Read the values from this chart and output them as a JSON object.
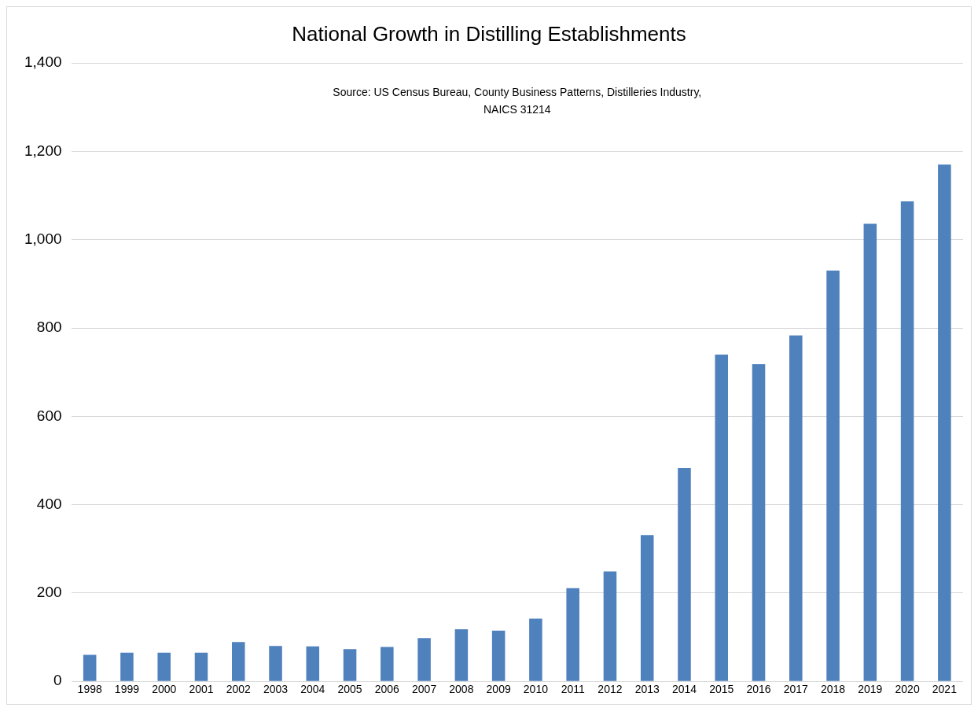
{
  "chart_data": {
    "type": "bar",
    "title": "National Growth in Distilling Establishments",
    "annotations": [
      "Source: US Census Bureau, County Business Patterns, Distilleries Industry,\nNAICS 31214"
    ],
    "categories": [
      "1998",
      "1999",
      "2000",
      "2001",
      "2002",
      "2003",
      "2004",
      "2005",
      "2006",
      "2007",
      "2008",
      "2009",
      "2010",
      "2011",
      "2012",
      "2013",
      "2014",
      "2015",
      "2016",
      "2017",
      "2018",
      "2019",
      "2020",
      "2021"
    ],
    "values": [
      60,
      65,
      65,
      65,
      89,
      80,
      79,
      73,
      78,
      98,
      118,
      115,
      142,
      211,
      249,
      331,
      483,
      740,
      718,
      783,
      930,
      1036,
      1087,
      1170
    ],
    "color": "#4f81bd",
    "ylim": [
      0,
      1400
    ],
    "yticks": [
      {
        "value": 0,
        "label": "0"
      },
      {
        "value": 200,
        "label": "200"
      },
      {
        "value": 400,
        "label": "400"
      },
      {
        "value": 600,
        "label": "600"
      },
      {
        "value": 800,
        "label": "800"
      },
      {
        "value": 1000,
        "label": "1,000"
      },
      {
        "value": 1200,
        "label": "1,200"
      },
      {
        "value": 1400,
        "label": "1,400"
      }
    ],
    "grid": "y",
    "legend": false
  }
}
